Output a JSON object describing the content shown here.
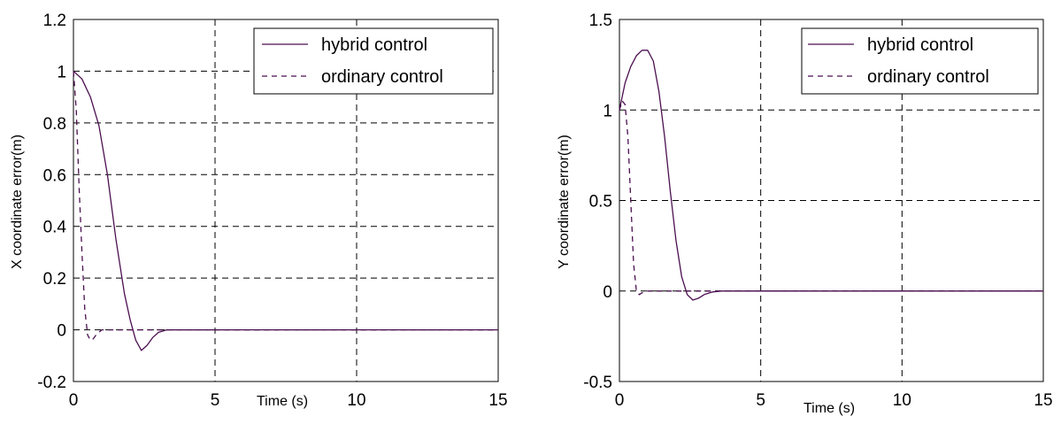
{
  "chart_data": [
    {
      "type": "line",
      "xlabel": "Time (s)",
      "ylabel": "X coordinate error(m)",
      "xlim": [
        0,
        15
      ],
      "ylim": [
        -0.2,
        1.2
      ],
      "xticks": [
        "0",
        "5",
        "10",
        "15"
      ],
      "yticks": [
        "-0.2",
        "0",
        "0.2",
        "0.4",
        "0.6",
        "0.8",
        "1",
        "1.2"
      ],
      "grid": true,
      "legend_position": "top-right",
      "series": [
        {
          "name": "hybrid control",
          "style": "solid",
          "color": "#4b0f50",
          "x": [
            0,
            0.3,
            0.6,
            0.9,
            1.2,
            1.5,
            1.8,
            2.0,
            2.2,
            2.4,
            2.6,
            2.8,
            3.0,
            3.3,
            3.6,
            4.0,
            15
          ],
          "y": [
            1.0,
            0.97,
            0.9,
            0.79,
            0.6,
            0.35,
            0.14,
            0.04,
            -0.04,
            -0.08,
            -0.06,
            -0.03,
            -0.01,
            0.0,
            0.0,
            0.0,
            0.0
          ]
        },
        {
          "name": "ordinary control",
          "style": "dashed",
          "color": "#4b0f50",
          "x": [
            0,
            0.1,
            0.2,
            0.3,
            0.4,
            0.5,
            0.6,
            0.7,
            0.8,
            0.9,
            1.0,
            1.2,
            1.5,
            2.0,
            15
          ],
          "y": [
            1.0,
            0.85,
            0.55,
            0.3,
            0.08,
            -0.02,
            -0.04,
            -0.035,
            -0.02,
            -0.01,
            0.0,
            0.0,
            0.0,
            0.0,
            0.0
          ]
        }
      ]
    },
    {
      "type": "line",
      "xlabel": "Time (s)",
      "ylabel": "Y coordinate error(m)",
      "xlim": [
        0,
        15
      ],
      "ylim": [
        -0.5,
        1.5
      ],
      "xticks": [
        "0",
        "5",
        "10",
        "15"
      ],
      "yticks": [
        "-0.5",
        "0",
        "0.5",
        "1",
        "1.5"
      ],
      "grid": true,
      "legend_position": "top-right",
      "series": [
        {
          "name": "hybrid control",
          "style": "solid",
          "color": "#4b0f50",
          "x": [
            0,
            0.2,
            0.4,
            0.6,
            0.8,
            1.0,
            1.2,
            1.4,
            1.6,
            1.8,
            2.0,
            2.2,
            2.4,
            2.6,
            2.8,
            3.0,
            3.3,
            3.6,
            15
          ],
          "y": [
            1.0,
            1.15,
            1.24,
            1.3,
            1.33,
            1.33,
            1.27,
            1.1,
            0.85,
            0.55,
            0.28,
            0.08,
            -0.02,
            -0.05,
            -0.04,
            -0.02,
            -0.005,
            0.0,
            0.0
          ]
        },
        {
          "name": "ordinary control",
          "style": "dashed",
          "color": "#4b0f50",
          "x": [
            0,
            0.1,
            0.2,
            0.3,
            0.4,
            0.5,
            0.6,
            0.7,
            0.8,
            1.0,
            1.3,
            15
          ],
          "y": [
            1.0,
            1.05,
            1.03,
            0.85,
            0.5,
            0.15,
            0.0,
            -0.02,
            -0.01,
            0.0,
            0.0,
            0.0
          ]
        }
      ]
    }
  ]
}
